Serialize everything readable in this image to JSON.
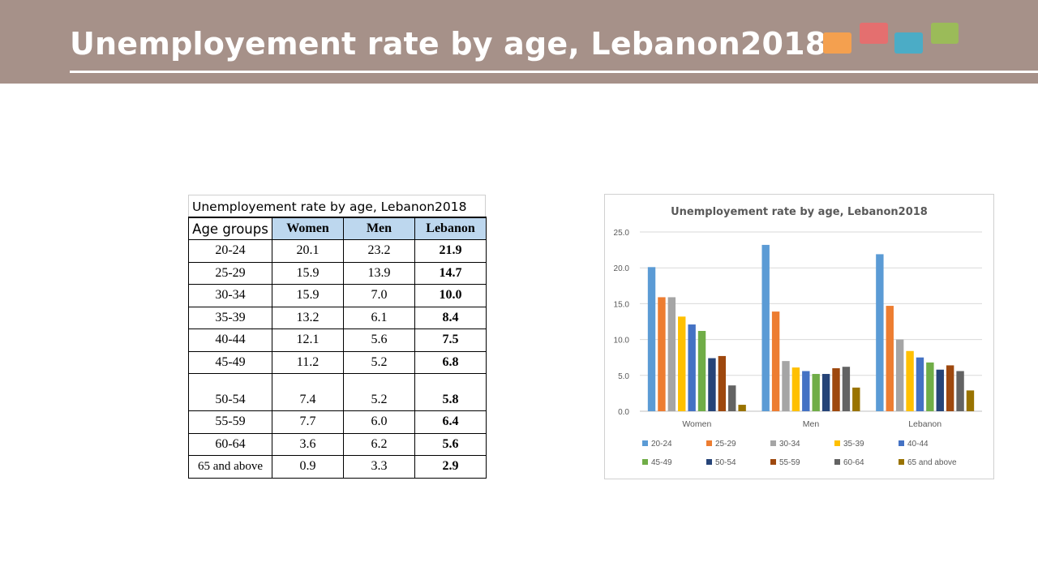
{
  "page": {
    "title": "Unemployement rate by age, Lebanon2018",
    "decor_colors": [
      "#f4a04f",
      "#e46f6f",
      "#4bacc6",
      "#9bbb59"
    ]
  },
  "table": {
    "caption": "Unemployement rate by age, Lebanon2018",
    "headers": [
      "Age groups",
      "Women",
      "Men",
      "Lebanon"
    ],
    "rows": [
      [
        "20-24",
        "20.1",
        "23.2",
        "21.9"
      ],
      [
        "25-29",
        "15.9",
        "13.9",
        "14.7"
      ],
      [
        "30-34",
        "15.9",
        "7.0",
        "10.0"
      ],
      [
        "35-39",
        "13.2",
        "6.1",
        "8.4"
      ],
      [
        "40-44",
        "12.1",
        "5.6",
        "7.5"
      ],
      [
        "45-49",
        "11.2",
        "5.2",
        "6.8"
      ],
      [
        "50-54",
        "7.4",
        "5.2",
        "5.8"
      ],
      [
        "55-59",
        "7.7",
        "6.0",
        "6.4"
      ],
      [
        "60-64",
        "3.6",
        "6.2",
        "5.6"
      ],
      [
        "65 and above",
        "0.9",
        "3.3",
        "2.9"
      ]
    ]
  },
  "chart_data": {
    "type": "bar",
    "title": "Unemployement rate by age, Lebanon2018",
    "categories": [
      "Women",
      "Men",
      "Lebanon"
    ],
    "ylim": [
      0,
      25
    ],
    "yticks": [
      "0.0",
      "5.0",
      "10.0",
      "15.0",
      "20.0",
      "25.0"
    ],
    "grid": true,
    "legend_position": "bottom",
    "series": [
      {
        "name": "20-24",
        "color": "#5b9bd5",
        "values": [
          20.1,
          23.2,
          21.9
        ]
      },
      {
        "name": "25-29",
        "color": "#ed7d31",
        "values": [
          15.9,
          13.9,
          14.7
        ]
      },
      {
        "name": "30-34",
        "color": "#a5a5a5",
        "values": [
          15.9,
          7.0,
          10.0
        ]
      },
      {
        "name": "35-39",
        "color": "#ffc000",
        "values": [
          13.2,
          6.1,
          8.4
        ]
      },
      {
        "name": "40-44",
        "color": "#4472c4",
        "values": [
          12.1,
          5.6,
          7.5
        ]
      },
      {
        "name": "45-49",
        "color": "#70ad47",
        "values": [
          11.2,
          5.2,
          6.8
        ]
      },
      {
        "name": "50-54",
        "color": "#264478",
        "values": [
          7.4,
          5.2,
          5.8
        ]
      },
      {
        "name": "55-59",
        "color": "#9e480e",
        "values": [
          7.7,
          6.0,
          6.4
        ]
      },
      {
        "name": "60-64",
        "color": "#636363",
        "values": [
          3.6,
          6.2,
          5.6
        ]
      },
      {
        "name": "65 and above",
        "color": "#997300",
        "values": [
          0.9,
          3.3,
          2.9
        ]
      }
    ]
  }
}
